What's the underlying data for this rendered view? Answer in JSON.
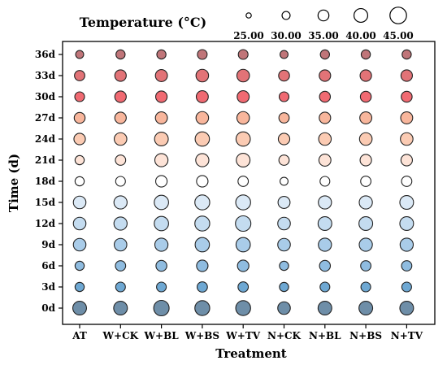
{
  "chart_data": {
    "type": "bubble",
    "xlabel": "Treatment",
    "ylabel": "Time (d)",
    "legend_title": "Temperature (°C)",
    "legend_values": [
      "25.00",
      "30.00",
      "35.00",
      "40.00",
      "45.00"
    ],
    "legend_placement": "top",
    "grid": false,
    "categories": [
      "AT",
      "W+CK",
      "W+BL",
      "W+BS",
      "W+TV",
      "N+CK",
      "N+BL",
      "N+BS",
      "N+TV"
    ],
    "times": [
      "0d",
      "3d",
      "6d",
      "9d",
      "12d",
      "15d",
      "18d",
      "21d",
      "24d",
      "27d",
      "30d",
      "33d",
      "36d"
    ],
    "row_colors": [
      "#6e8ea8",
      "#6ea8d3",
      "#8fbce0",
      "#a9cce9",
      "#c4dcf0",
      "#dbe9f6",
      "#ffffff",
      "#fde3d7",
      "#fbcbb3",
      "#f8b69c",
      "#f06a72",
      "#e27377",
      "#c07579"
    ],
    "temperatures": [
      [
        40,
        40,
        43,
        42,
        42,
        38,
        40,
        40,
        40
      ],
      [
        32,
        33,
        33,
        34,
        34,
        32,
        33,
        33,
        33
      ],
      [
        32,
        34,
        35,
        36,
        36,
        32,
        35,
        34,
        34
      ],
      [
        38,
        38,
        39,
        41,
        41,
        38,
        39,
        39,
        39
      ],
      [
        38,
        39,
        41,
        42,
        43,
        38,
        40,
        40,
        40
      ],
      [
        38,
        39,
        41,
        42,
        42,
        37,
        39,
        39,
        40
      ],
      [
        32,
        33,
        36,
        36,
        34,
        30,
        33,
        34,
        34
      ],
      [
        32,
        34,
        39,
        39,
        40,
        34,
        37,
        36,
        36
      ],
      [
        36,
        38,
        40,
        41,
        41,
        36,
        38,
        38,
        38
      ],
      [
        35,
        36,
        37,
        38,
        38,
        34,
        36,
        37,
        37
      ],
      [
        33,
        36,
        36,
        37,
        37,
        33,
        35,
        35,
        35
      ],
      [
        34,
        36,
        37,
        38,
        38,
        35,
        36,
        36,
        36
      ],
      [
        30,
        32,
        32,
        33,
        33,
        30,
        32,
        32,
        32
      ]
    ]
  }
}
